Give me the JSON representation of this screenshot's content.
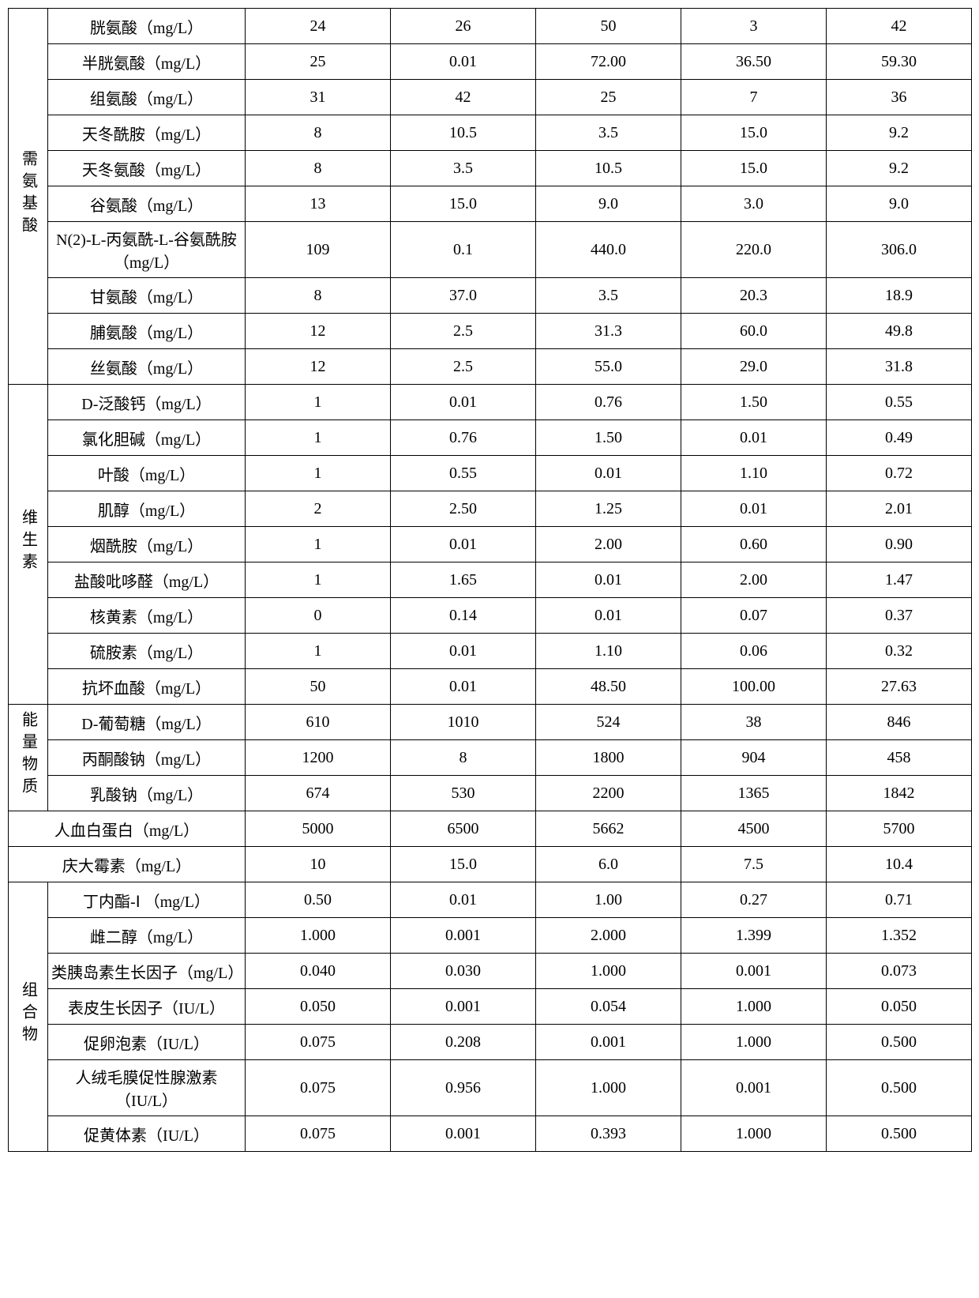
{
  "categories": {
    "amino": "需氨基酸",
    "vitamin": "维生素",
    "energy": "能量物质",
    "albumin": "人血白蛋白（mg/L）",
    "genta": "庆大霉素（mg/L）",
    "combo": "组合物"
  },
  "rows": {
    "a1": {
      "name": "胱氨酸（mg/L）",
      "v": [
        "24",
        "26",
        "50",
        "3",
        "42"
      ]
    },
    "a2": {
      "name": "半胱氨酸（mg/L）",
      "v": [
        "25",
        "0.01",
        "72.00",
        "36.50",
        "59.30"
      ]
    },
    "a3": {
      "name": "组氨酸（mg/L）",
      "v": [
        "31",
        "42",
        "25",
        "7",
        "36"
      ]
    },
    "a4": {
      "name": "天冬酰胺（mg/L）",
      "v": [
        "8",
        "10.5",
        "3.5",
        "15.0",
        "9.2"
      ]
    },
    "a5": {
      "name": "天冬氨酸（mg/L）",
      "v": [
        "8",
        "3.5",
        "10.5",
        "15.0",
        "9.2"
      ]
    },
    "a6": {
      "name": "谷氨酸（mg/L）",
      "v": [
        "13",
        "15.0",
        "9.0",
        "3.0",
        "9.0"
      ]
    },
    "a7": {
      "name": "N(2)-L-丙氨酰-L-谷氨酰胺（mg/L）",
      "v": [
        "109",
        "0.1",
        "440.0",
        "220.0",
        "306.0"
      ]
    },
    "a8": {
      "name": "甘氨酸（mg/L）",
      "v": [
        "8",
        "37.0",
        "3.5",
        "20.3",
        "18.9"
      ]
    },
    "a9": {
      "name": "脯氨酸（mg/L）",
      "v": [
        "12",
        "2.5",
        "31.3",
        "60.0",
        "49.8"
      ]
    },
    "a10": {
      "name": "丝氨酸（mg/L）",
      "v": [
        "12",
        "2.5",
        "55.0",
        "29.0",
        "31.8"
      ]
    },
    "v1": {
      "name": "D-泛酸钙（mg/L）",
      "v": [
        "1",
        "0.01",
        "0.76",
        "1.50",
        "0.55"
      ]
    },
    "v2": {
      "name": "氯化胆碱（mg/L）",
      "v": [
        "1",
        "0.76",
        "1.50",
        "0.01",
        "0.49"
      ]
    },
    "v3": {
      "name": "叶酸（mg/L）",
      "v": [
        "1",
        "0.55",
        "0.01",
        "1.10",
        "0.72"
      ]
    },
    "v4": {
      "name": "肌醇（mg/L）",
      "v": [
        "2",
        "2.50",
        "1.25",
        "0.01",
        "2.01"
      ]
    },
    "v5": {
      "name": "烟酰胺（mg/L）",
      "v": [
        "1",
        "0.01",
        "2.00",
        "0.60",
        "0.90"
      ]
    },
    "v6": {
      "name": "盐酸吡哆醛（mg/L）",
      "v": [
        "1",
        "1.65",
        "0.01",
        "2.00",
        "1.47"
      ]
    },
    "v7": {
      "name": "核黄素（mg/L）",
      "v": [
        "0",
        "0.14",
        "0.01",
        "0.07",
        "0.37"
      ]
    },
    "v8": {
      "name": "硫胺素（mg/L）",
      "v": [
        "1",
        "0.01",
        "1.10",
        "0.06",
        "0.32"
      ]
    },
    "v9": {
      "name": "抗坏血酸（mg/L）",
      "v": [
        "50",
        "0.01",
        "48.50",
        "100.00",
        "27.63"
      ]
    },
    "e1": {
      "name": "D-葡萄糖（mg/L）",
      "v": [
        "610",
        "1010",
        "524",
        "38",
        "846"
      ]
    },
    "e2": {
      "name": "丙酮酸钠（mg/L）",
      "v": [
        "1200",
        "8",
        "1800",
        "904",
        "458"
      ]
    },
    "e3": {
      "name": "乳酸钠（mg/L）",
      "v": [
        "674",
        "530",
        "2200",
        "1365",
        "1842"
      ]
    },
    "alb": {
      "v": [
        "5000",
        "6500",
        "5662",
        "4500",
        "5700"
      ]
    },
    "gen": {
      "v": [
        "10",
        "15.0",
        "6.0",
        "7.5",
        "10.4"
      ]
    },
    "c1": {
      "name": "丁内酯-Ⅰ （mg/L）",
      "v": [
        "0.50",
        "0.01",
        "1.00",
        "0.27",
        "0.71"
      ]
    },
    "c2": {
      "name": "雌二醇（mg/L）",
      "v": [
        "1.000",
        "0.001",
        "2.000",
        "1.399",
        "1.352"
      ]
    },
    "c3": {
      "name": "类胰岛素生长因子（mg/L）",
      "v": [
        "0.040",
        "0.030",
        "1.000",
        "0.001",
        "0.073"
      ]
    },
    "c4": {
      "name": "表皮生长因子（IU/L）",
      "v": [
        "0.050",
        "0.001",
        "0.054",
        "1.000",
        "0.050"
      ]
    },
    "c5": {
      "name": "促卵泡素（IU/L）",
      "v": [
        "0.075",
        "0.208",
        "0.001",
        "1.000",
        "0.500"
      ]
    },
    "c6": {
      "name": "人绒毛膜促性腺激素（IU/L）",
      "v": [
        "0.075",
        "0.956",
        "1.000",
        "0.001",
        "0.500"
      ]
    },
    "c7": {
      "name": "促黄体素（IU/L）",
      "v": [
        "0.075",
        "0.001",
        "0.393",
        "1.000",
        "0.500"
      ]
    }
  }
}
